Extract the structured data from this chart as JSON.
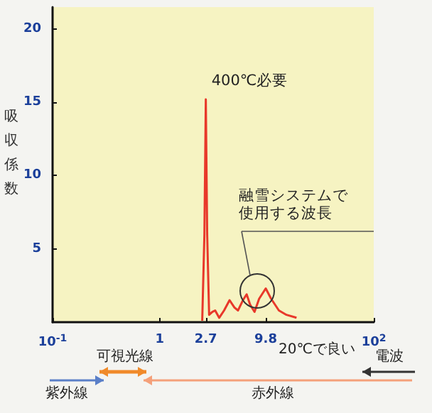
{
  "chart_data": {
    "type": "line",
    "ylabel": "吸収係数",
    "x": [
      2.5,
      2.62,
      2.7,
      2.78,
      2.9,
      3.1,
      3.3,
      3.6,
      4.0,
      4.5,
      5.0,
      5.4,
      6.0,
      6.5,
      7.0,
      7.7,
      8.5,
      9.8,
      11,
      13,
      15.3,
      19
    ],
    "series": [
      {
        "color": "#e8382a",
        "values": [
          0.1,
          6,
          15.2,
          6,
          0.5,
          0.7,
          0.8,
          0.3,
          0.8,
          1.5,
          1.0,
          0.8,
          1.5,
          1.9,
          1.2,
          0.7,
          1.6,
          2.3,
          1.6,
          0.8,
          0.5,
          0.3
        ]
      }
    ],
    "log": "x",
    "xlim": [
      0.1,
      100
    ],
    "xticks": [
      {
        "value": 0.1,
        "label": "10$^{-1}$"
      },
      1,
      2.7,
      9.8,
      {
        "value": 100,
        "label": "10$^{2}$"
      }
    ],
    "ylim": [
      0,
      21.5
    ],
    "yticks": [
      5,
      10,
      15,
      20
    ],
    "grid": false,
    "marker": "none",
    "annotations": [
      {
        "text": "400℃必要",
        "x": 2.7,
        "y": 15.2
      },
      "融雪システムで使用する波長",
      "20℃で良い",
      "可視光線",
      "紫外線",
      "赤外線",
      "電波"
    ]
  }
}
